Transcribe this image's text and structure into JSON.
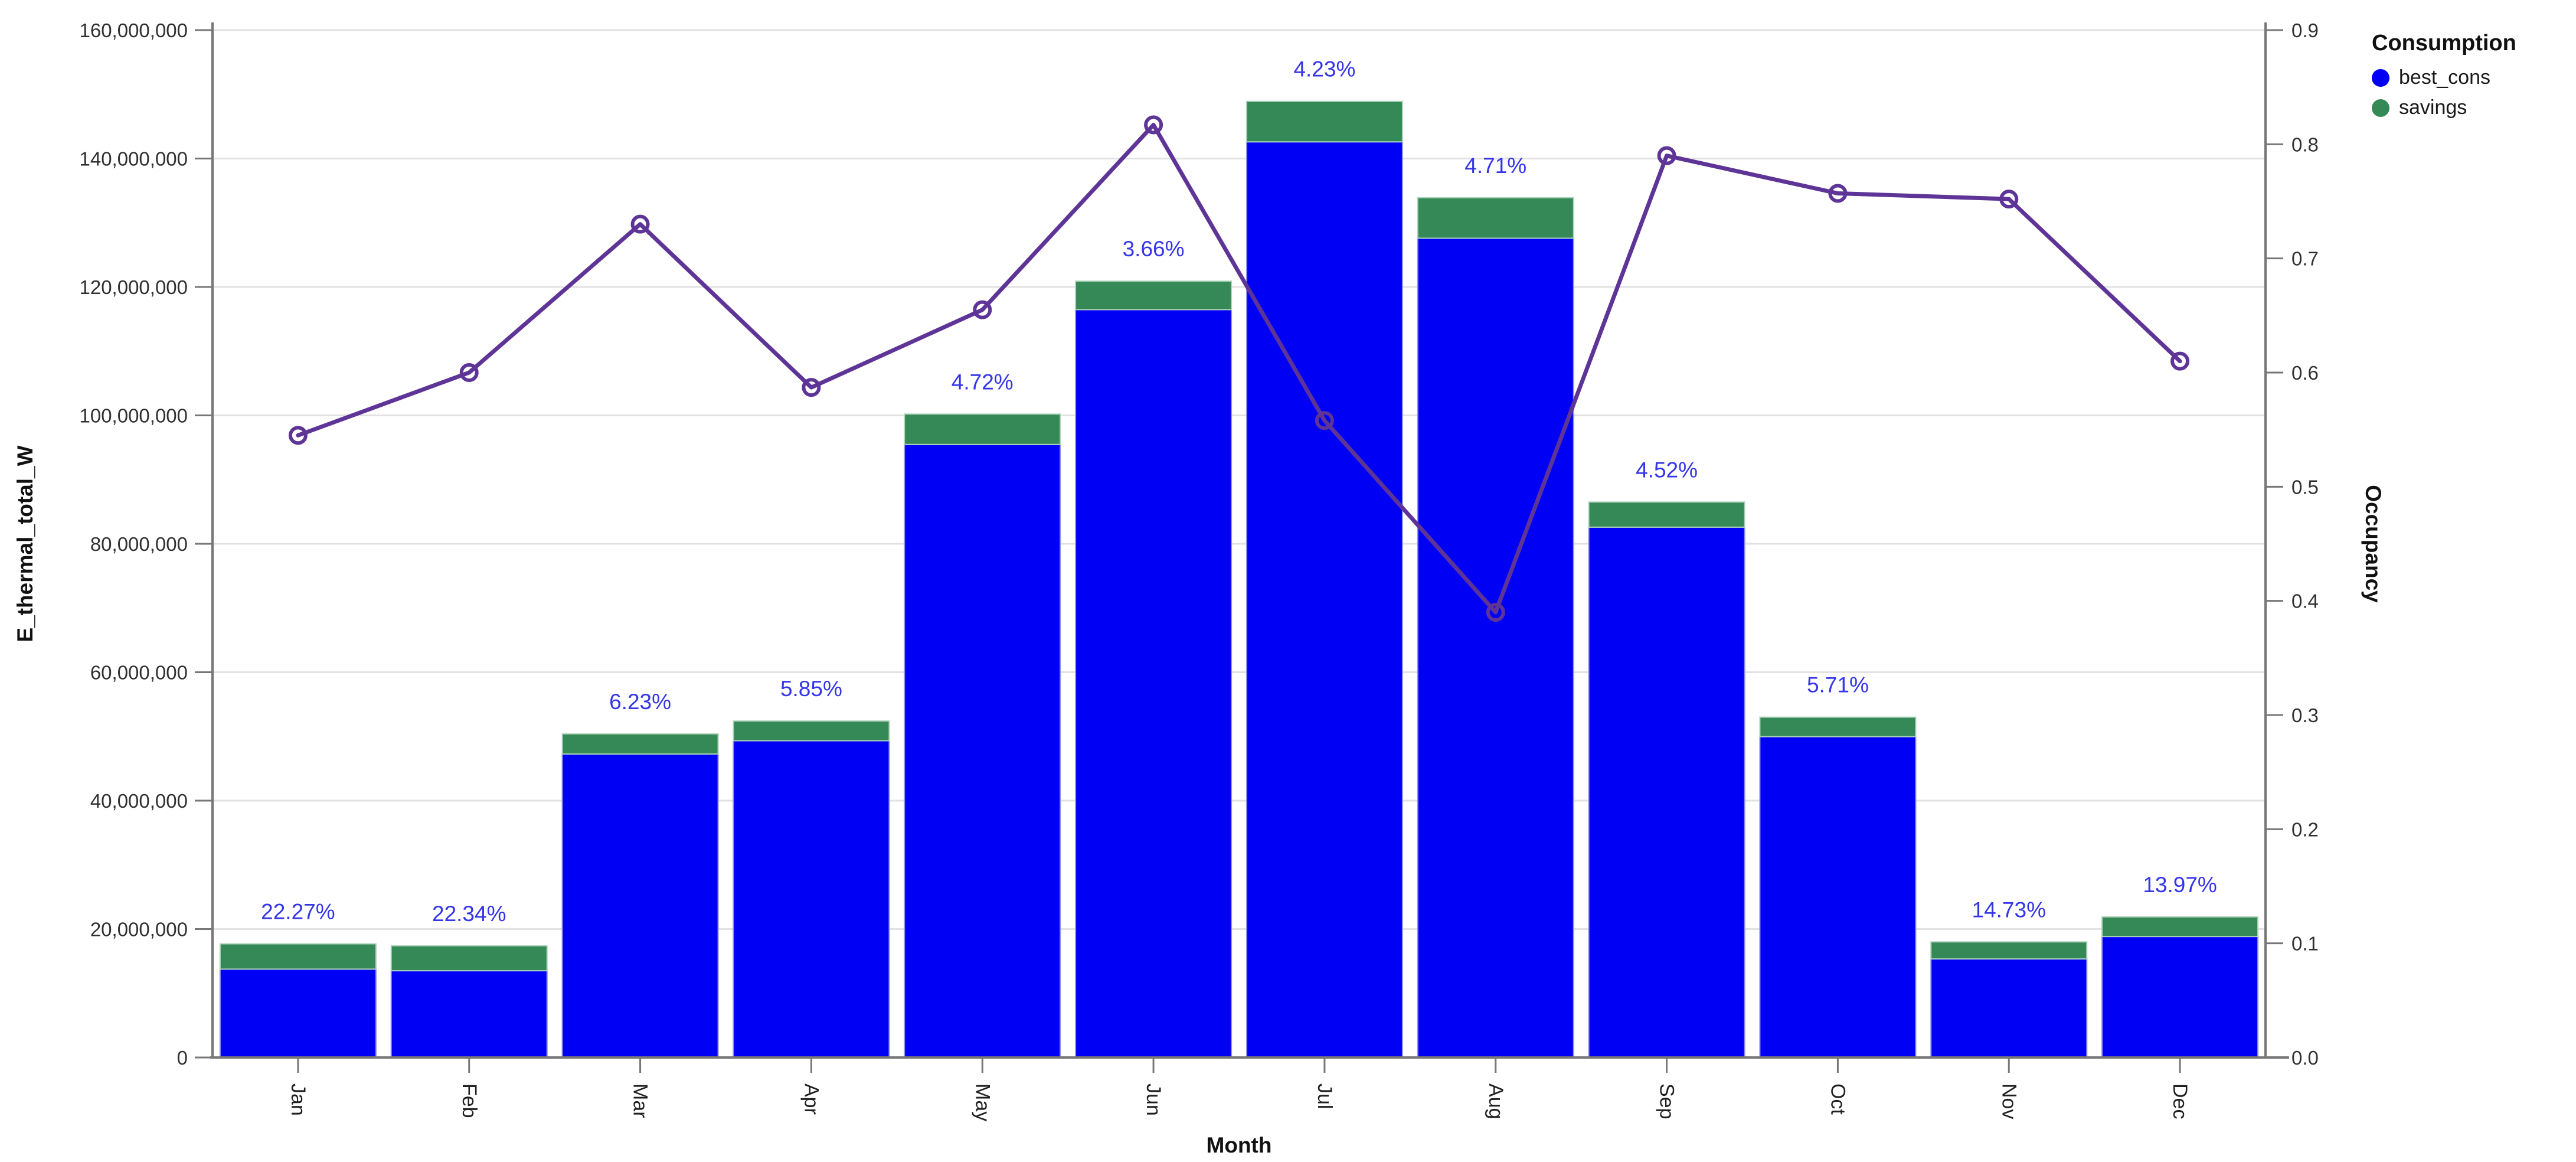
{
  "chart_data": {
    "type": "bar",
    "subtype": "stacked-bars-with-line",
    "title": "",
    "xlabel": "Month",
    "ylabel": "E_thermal_total_W",
    "y2label": "Occupancy",
    "ylim": [
      0,
      160000000
    ],
    "y2lim": [
      0,
      0.9
    ],
    "grid": "horizontal",
    "categories": [
      "Jan",
      "Feb",
      "Mar",
      "Apr",
      "May",
      "Jun",
      "Jul",
      "Aug",
      "Sep",
      "Oct",
      "Nov",
      "Dec"
    ],
    "y_ticks": [
      "0",
      "20,000,000",
      "40,000,000",
      "60,000,000",
      "80,000,000",
      "100,000,000",
      "120,000,000",
      "140,000,000",
      "160,000,000"
    ],
    "y2_ticks": [
      "0.0",
      "0.1",
      "0.2",
      "0.3",
      "0.4",
      "0.5",
      "0.6",
      "0.7",
      "0.8",
      "0.9"
    ],
    "series": [
      {
        "name": "best_cons",
        "type": "bar",
        "axis": "left",
        "color": "#0000f5",
        "edge_color": "#8f8ff2",
        "values": [
          13760000,
          13510000,
          47260000,
          49330000,
          95470000,
          116470000,
          142600000,
          127590000,
          82590000,
          49970000,
          15350000,
          18840000
        ]
      },
      {
        "name": "savings",
        "type": "bar",
        "axis": "left",
        "color": "#348957",
        "edge_color": "#aed3bb",
        "values": [
          3940000,
          3890000,
          3140000,
          3070000,
          4730000,
          4430000,
          6300000,
          6310000,
          3910000,
          3030000,
          2650000,
          3060000
        ]
      },
      {
        "name": "Occupancy",
        "type": "line",
        "axis": "right",
        "color": "#5e3597",
        "marker": "open-circle",
        "values": [
          0.545,
          0.6,
          0.73,
          0.587,
          0.655,
          0.817,
          0.558,
          0.39,
          0.79,
          0.757,
          0.752,
          0.61
        ]
      }
    ],
    "bar_labels": {
      "color": "#3434e8",
      "values": [
        "22.27%",
        "22.34%",
        "6.23%",
        "5.85%",
        "4.72%",
        "3.66%",
        "4.23%",
        "4.71%",
        "4.52%",
        "5.71%",
        "14.73%",
        "13.97%"
      ]
    },
    "legend": {
      "title": "Consumption",
      "position": "top-right",
      "items": [
        {
          "label": "best_cons",
          "color": "#0000f5"
        },
        {
          "label": "savings",
          "color": "#348957"
        }
      ]
    },
    "colors": {
      "axis_line": "#777777",
      "grid_line": "#e2e2e2",
      "tick_text": "#303030",
      "title_text": "#111111"
    }
  }
}
